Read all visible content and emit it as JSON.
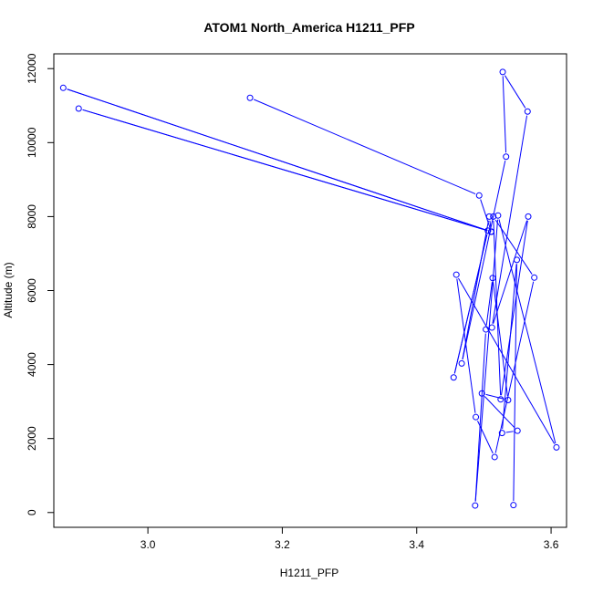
{
  "chart_data": {
    "type": "line",
    "title": "ATOM1 North_America H1211_PFP",
    "xlabel": "H1211_PFP",
    "ylabel": "Altitude (m)",
    "xlim": [
      2.86,
      3.623
    ],
    "ylim": [
      -400,
      12400
    ],
    "x_ticks": [
      3.0,
      3.2,
      3.4,
      3.6
    ],
    "x_tick_labels": [
      "3.0",
      "3.2",
      "3.4",
      "3.6"
    ],
    "y_ticks": [
      0,
      2000,
      4000,
      6000,
      8000,
      10000,
      12000
    ],
    "y_tick_labels": [
      "0",
      "2000",
      "4000",
      "6000",
      "8000",
      "10000",
      "12000"
    ],
    "grid": false,
    "legend": "none",
    "series_color": "#0000ff",
    "series": [
      {
        "x": [
          3.544,
          3.549,
          3.527,
          3.55,
          3.497,
          3.536,
          3.513,
          3.503,
          3.487,
          3.521,
          3.608,
          3.459,
          3.488,
          3.516,
          3.575,
          3.514,
          3.525,
          3.566,
          3.512,
          3.565,
          3.528,
          3.533,
          3.467,
          3.508,
          3.511,
          3.493,
          3.152
        ],
        "y": [
          200,
          6830,
          2150,
          2210,
          3220,
          3040,
          6340,
          4950,
          190,
          8030,
          1760,
          6430,
          2580,
          1500,
          6350,
          8000,
          3060,
          8000,
          5000,
          10840,
          11910,
          9620,
          4030,
          8000,
          7590,
          8570,
          11210
        ]
      },
      {
        "x": [
          3.511,
          2.874,
          3.511,
          3.511,
          2.897,
          3.506,
          3.455,
          3.506
        ],
        "y": [
          7590,
          11480,
          7590,
          7590,
          10920,
          7620,
          3650,
          7620
        ]
      }
    ]
  }
}
